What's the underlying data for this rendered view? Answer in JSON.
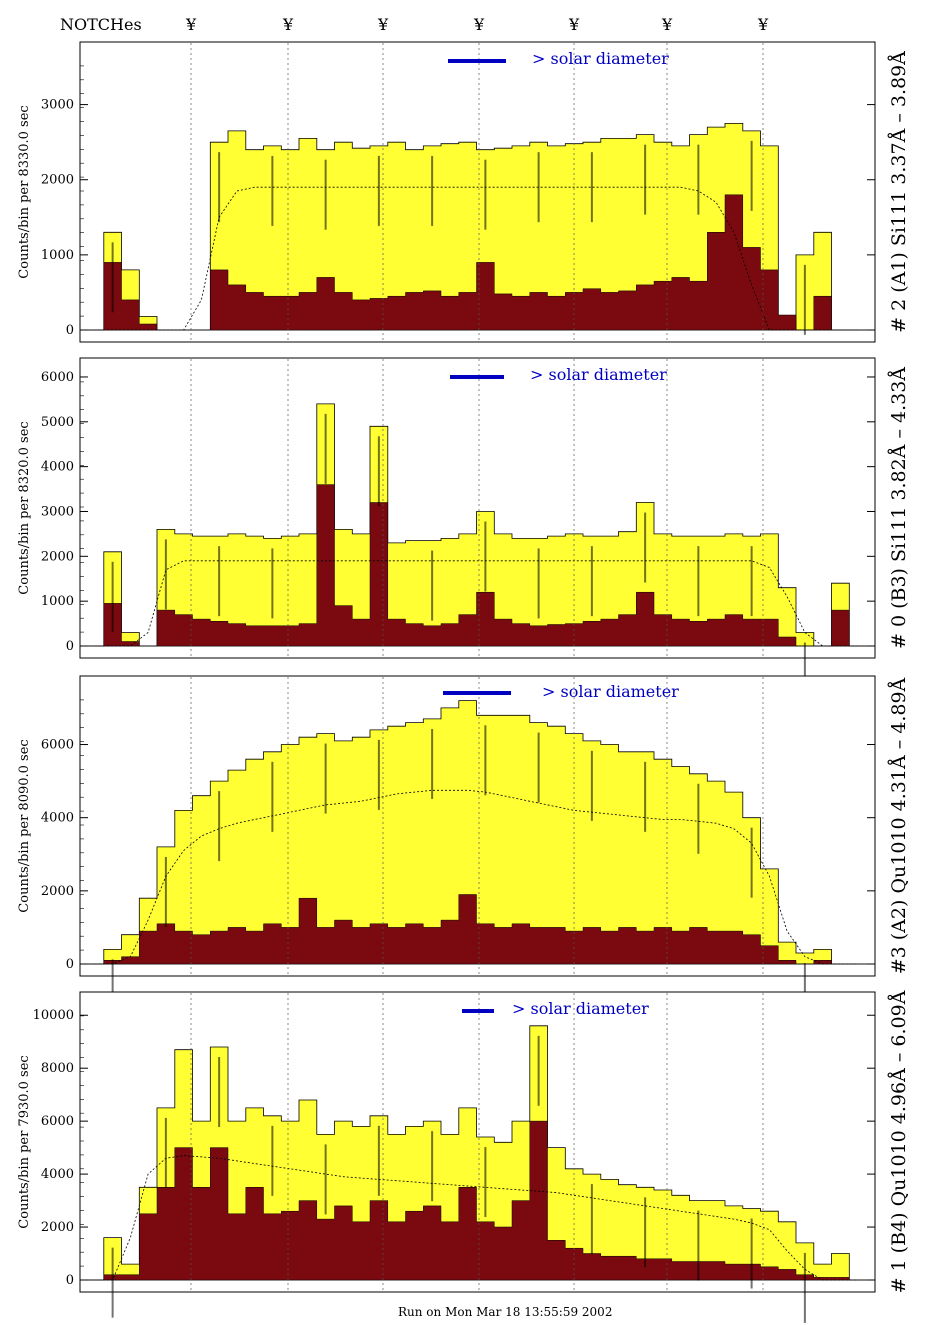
{
  "header": {
    "notches_label": "NOTCHes",
    "notch_symbol": "¥",
    "notch_count": 7
  },
  "footer": {
    "run_text": "Run on Mon Mar 18 13:55:59 2002"
  },
  "colors": {
    "total": "#ffff33",
    "core": "#7a0a10",
    "legend_bar": "#0000c0",
    "line_labels": "#0000c0"
  },
  "chart_data": [
    {
      "type": "area",
      "panel": "A1",
      "right_label": "# 2 (A1) Si111  3.37Å – 3.89Å",
      "ylabel": "Counts/bin per   8330.0 sec",
      "legend": "> solar diameter",
      "yticks": [
        "0",
        "1000",
        "2000",
        "3000"
      ],
      "ylim": [
        0,
        3700
      ],
      "total_values": [
        0,
        1300,
        800,
        180,
        0,
        0,
        0,
        2500,
        2650,
        2400,
        2450,
        2400,
        2550,
        2400,
        2500,
        2420,
        2450,
        2500,
        2400,
        2450,
        2480,
        2500,
        2400,
        2420,
        2450,
        2500,
        2450,
        2480,
        2500,
        2550,
        2550,
        2600,
        2500,
        2450,
        2600,
        2700,
        2750,
        2650,
        2450,
        0,
        1000,
        1300,
        0,
        0
      ],
      "core_values": [
        0,
        900,
        400,
        80,
        0,
        0,
        0,
        800,
        600,
        500,
        450,
        450,
        500,
        700,
        500,
        400,
        420,
        450,
        500,
        520,
        450,
        500,
        900,
        480,
        450,
        500,
        450,
        500,
        550,
        500,
        520,
        600,
        650,
        700,
        650,
        1300,
        1800,
        1100,
        800,
        200,
        0,
        450,
        0,
        0
      ],
      "model_values": [
        0,
        0,
        0,
        0,
        0,
        0,
        400,
        1500,
        1850,
        1900,
        1900,
        1900,
        1900,
        1900,
        1900,
        1900,
        1900,
        1900,
        1900,
        1900,
        1900,
        1900,
        1900,
        1900,
        1900,
        1900,
        1900,
        1900,
        1900,
        1900,
        1900,
        1900,
        1900,
        1900,
        1850,
        1700,
        1300,
        600,
        0,
        0,
        0,
        0,
        0,
        0
      ]
    },
    {
      "type": "area",
      "panel": "B3",
      "right_label": "# 0 (B3) Si111  3.82Å – 4.33Å",
      "ylabel": "Counts/bin per   8320.0 sec",
      "legend": "> solar diameter",
      "yticks": [
        "0",
        "1000",
        "2000",
        "3000",
        "4000",
        "5000",
        "6000"
      ],
      "ylim": [
        0,
        6200
      ],
      "total_values": [
        0,
        2100,
        300,
        0,
        2600,
        2500,
        2450,
        2450,
        2500,
        2450,
        2400,
        2450,
        2500,
        5400,
        2600,
        2500,
        4900,
        2300,
        2350,
        2350,
        2400,
        2500,
        3000,
        2500,
        2400,
        2400,
        2450,
        2500,
        2450,
        2450,
        2550,
        3200,
        2500,
        2450,
        2450,
        2450,
        2500,
        2450,
        2500,
        1300,
        300,
        0,
        1400,
        0
      ],
      "core_values": [
        0,
        950,
        100,
        0,
        800,
        700,
        600,
        550,
        500,
        450,
        450,
        450,
        500,
        3600,
        900,
        600,
        3200,
        600,
        500,
        450,
        500,
        700,
        1200,
        600,
        500,
        450,
        480,
        500,
        550,
        600,
        700,
        1200,
        700,
        600,
        550,
        600,
        700,
        600,
        600,
        200,
        0,
        0,
        800,
        0
      ],
      "model_values": [
        0,
        0,
        0,
        300,
        1700,
        1900,
        1900,
        1900,
        1900,
        1900,
        1900,
        1900,
        1900,
        1900,
        1900,
        1900,
        1900,
        1900,
        1900,
        1900,
        1900,
        1900,
        1900,
        1900,
        1900,
        1900,
        1900,
        1900,
        1900,
        1900,
        1900,
        1900,
        1900,
        1900,
        1900,
        1900,
        1900,
        1900,
        1750,
        1100,
        300,
        0,
        0,
        0
      ]
    },
    {
      "type": "area",
      "panel": "A2",
      "right_label": "#3 (A2) Qu1010  4.31Å – 4.89Å",
      "ylabel": "Counts/bin per   8090.0 sec",
      "legend": "> solar diameter",
      "yticks": [
        "0",
        "2000",
        "4000",
        "6000"
      ],
      "ylim": [
        0,
        7600
      ],
      "total_values": [
        0,
        400,
        800,
        1800,
        3200,
        4200,
        4600,
        5000,
        5300,
        5600,
        5800,
        6000,
        6200,
        6300,
        6100,
        6200,
        6400,
        6500,
        6600,
        6700,
        7000,
        7200,
        6800,
        6800,
        6800,
        6600,
        6500,
        6300,
        6100,
        6000,
        5800,
        5800,
        5600,
        5400,
        5200,
        5000,
        4700,
        4000,
        2600,
        600,
        300,
        400,
        0,
        0
      ],
      "core_values": [
        0,
        100,
        200,
        900,
        1100,
        900,
        800,
        900,
        1000,
        900,
        1100,
        1000,
        1800,
        1000,
        1200,
        1000,
        1100,
        1000,
        1100,
        1000,
        1200,
        1900,
        1100,
        1000,
        1100,
        1000,
        1000,
        900,
        1000,
        900,
        1000,
        900,
        1000,
        900,
        1000,
        900,
        900,
        800,
        500,
        100,
        0,
        100,
        0,
        0
      ],
      "model_values": [
        0,
        0,
        200,
        1200,
        2400,
        3100,
        3500,
        3700,
        3850,
        3950,
        4050,
        4150,
        4250,
        4350,
        4400,
        4450,
        4550,
        4650,
        4700,
        4750,
        4750,
        4750,
        4700,
        4600,
        4500,
        4400,
        4300,
        4200,
        4150,
        4100,
        4050,
        4000,
        3950,
        3950,
        3900,
        3850,
        3700,
        3300,
        2400,
        900,
        200,
        0,
        0,
        0
      ]
    },
    {
      "type": "area",
      "panel": "B4",
      "right_label": "# 1 (B4) Qu1010 4.96Å – 6.09Å",
      "ylabel": "Counts/bin per   7930.0 sec",
      "legend": "> solar diameter",
      "yticks": [
        "0",
        "2000",
        "4000",
        "6000",
        "8000",
        "10000"
      ],
      "ylim": [
        0,
        10500
      ],
      "total_values": [
        0,
        1600,
        600,
        3500,
        6500,
        8700,
        6000,
        8800,
        6000,
        6500,
        6200,
        6000,
        6800,
        5500,
        6000,
        5800,
        6200,
        5500,
        5800,
        6000,
        5500,
        6500,
        5400,
        5200,
        6000,
        9600,
        5000,
        4200,
        4000,
        3800,
        3600,
        3500,
        3400,
        3200,
        3000,
        3000,
        2800,
        2700,
        2600,
        2200,
        1400,
        600,
        1000,
        0
      ],
      "core_values": [
        0,
        200,
        200,
        2500,
        3500,
        5000,
        3500,
        5000,
        2500,
        3500,
        2500,
        2600,
        3000,
        2300,
        2800,
        2200,
        3000,
        2200,
        2600,
        2800,
        2200,
        3500,
        2200,
        2000,
        3000,
        6000,
        1500,
        1200,
        1000,
        900,
        900,
        800,
        800,
        700,
        700,
        700,
        600,
        600,
        500,
        400,
        200,
        100,
        100,
        0
      ],
      "model_values": [
        0,
        0,
        1600,
        4000,
        4600,
        4700,
        4650,
        4600,
        4500,
        4400,
        4300,
        4200,
        4100,
        4000,
        3900,
        3850,
        3800,
        3750,
        3700,
        3650,
        3600,
        3550,
        3500,
        3450,
        3400,
        3350,
        3300,
        3200,
        3100,
        3000,
        2900,
        2800,
        2700,
        2600,
        2500,
        2400,
        2300,
        2150,
        1900,
        1100,
        400,
        0,
        0,
        0
      ]
    }
  ]
}
